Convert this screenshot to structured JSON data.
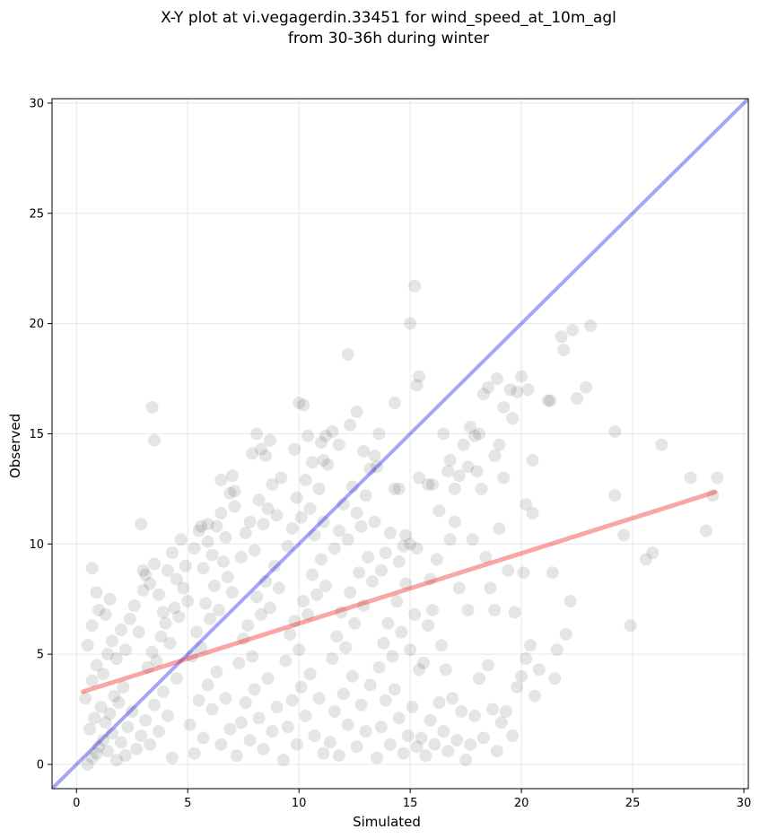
{
  "chart_data": {
    "type": "scatter",
    "title": "X-Y plot at vi.vegagerdin.33451 for wind_speed_at_10m_agl",
    "subtitle": "from 30-36h during winter",
    "xlabel": "Simulated",
    "ylabel": "Observed",
    "xlim": [
      -1.1,
      30.2
    ],
    "ylim": [
      -1.1,
      30.2
    ],
    "xticks": [
      0,
      5,
      10,
      15,
      20,
      25,
      30
    ],
    "yticks": [
      0,
      5,
      10,
      15,
      20,
      25,
      30
    ],
    "grid": true,
    "point_color": "#000000",
    "point_opacity": 0.1,
    "identity_line": {
      "x": [
        -1.1,
        30.2
      ],
      "y": [
        -1.1,
        30.2
      ],
      "color": "#0000ee",
      "opacity": 0.35
    },
    "regression_line": {
      "x": [
        0.3,
        28.7
      ],
      "y": [
        3.3,
        12.35
      ],
      "color": "#ee0000",
      "opacity": 0.35
    },
    "points": [
      [
        0.5,
        0.0
      ],
      [
        0.7,
        0.3
      ],
      [
        0.9,
        0.5
      ],
      [
        1.0,
        0.8
      ],
      [
        1.2,
        1.1
      ],
      [
        1.4,
        0.6
      ],
      [
        1.6,
        1.4
      ],
      [
        1.8,
        0.2
      ],
      [
        2.0,
        1.0
      ],
      [
        2.2,
        0.4
      ],
      [
        0.6,
        1.6
      ],
      [
        0.8,
        2.1
      ],
      [
        1.1,
        2.6
      ],
      [
        1.3,
        1.9
      ],
      [
        1.5,
        2.3
      ],
      [
        1.7,
        3.1
      ],
      [
        1.9,
        2.8
      ],
      [
        2.1,
        3.5
      ],
      [
        2.3,
        1.7
      ],
      [
        2.5,
        2.4
      ],
      [
        0.4,
        3.0
      ],
      [
        0.7,
        3.8
      ],
      [
        0.9,
        4.5
      ],
      [
        1.2,
        4.1
      ],
      [
        1.4,
        5.0
      ],
      [
        1.6,
        5.6
      ],
      [
        1.8,
        4.8
      ],
      [
        2.0,
        6.1
      ],
      [
        2.2,
        5.2
      ],
      [
        2.4,
        6.6
      ],
      [
        0.5,
        5.4
      ],
      [
        0.7,
        6.3
      ],
      [
        1.0,
        7.0
      ],
      [
        1.3,
        6.8
      ],
      [
        1.5,
        7.5
      ],
      [
        0.7,
        8.9
      ],
      [
        0.9,
        7.8
      ],
      [
        2.6,
        7.2
      ],
      [
        2.8,
        6.0
      ],
      [
        3.0,
        7.9
      ],
      [
        2.7,
        0.7
      ],
      [
        2.9,
        1.3
      ],
      [
        3.1,
        2.0
      ],
      [
        3.3,
        0.9
      ],
      [
        3.5,
        2.7
      ],
      [
        3.7,
        1.5
      ],
      [
        3.9,
        3.3
      ],
      [
        4.1,
        2.2
      ],
      [
        4.3,
        0.3
      ],
      [
        4.5,
        3.9
      ],
      [
        3.2,
        4.4
      ],
      [
        3.4,
        5.1
      ],
      [
        3.6,
        4.7
      ],
      [
        3.8,
        5.8
      ],
      [
        4.0,
        6.4
      ],
      [
        4.2,
        5.5
      ],
      [
        4.4,
        7.1
      ],
      [
        4.6,
        6.7
      ],
      [
        4.8,
        8.0
      ],
      [
        5.0,
        7.4
      ],
      [
        3.1,
        8.6
      ],
      [
        3.3,
        8.2
      ],
      [
        3.5,
        9.1
      ],
      [
        3.7,
        7.7
      ],
      [
        3.9,
        6.9
      ],
      [
        4.1,
        8.8
      ],
      [
        4.3,
        9.6
      ],
      [
        4.5,
        8.4
      ],
      [
        4.7,
        10.2
      ],
      [
        4.9,
        9.0
      ],
      [
        3.4,
        16.2
      ],
      [
        3.5,
        14.7
      ],
      [
        2.9,
        10.9
      ],
      [
        3.0,
        8.8
      ],
      [
        5.1,
        1.8
      ],
      [
        5.3,
        0.5
      ],
      [
        5.5,
        2.9
      ],
      [
        5.7,
        1.2
      ],
      [
        5.9,
        3.6
      ],
      [
        6.1,
        2.5
      ],
      [
        6.3,
        4.2
      ],
      [
        6.5,
        0.9
      ],
      [
        6.7,
        3.0
      ],
      [
        6.9,
        1.6
      ],
      [
        5.2,
        4.9
      ],
      [
        5.4,
        6.0
      ],
      [
        5.6,
        5.3
      ],
      [
        5.8,
        7.3
      ],
      [
        6.0,
        6.6
      ],
      [
        6.2,
        8.1
      ],
      [
        6.4,
        7.0
      ],
      [
        6.6,
        9.2
      ],
      [
        6.8,
        8.5
      ],
      [
        7.0,
        7.8
      ],
      [
        5.3,
        9.8
      ],
      [
        5.5,
        10.6
      ],
      [
        5.7,
        8.9
      ],
      [
        5.9,
        10.1
      ],
      [
        6.1,
        9.5
      ],
      [
        6.3,
        10.8
      ],
      [
        6.5,
        11.4
      ],
      [
        6.7,
        10.3
      ],
      [
        6.9,
        12.3
      ],
      [
        7.1,
        11.7
      ],
      [
        5.6,
        10.8
      ],
      [
        5.9,
        10.9
      ],
      [
        6.5,
        12.9
      ],
      [
        7.0,
        13.1
      ],
      [
        7.1,
        12.4
      ],
      [
        7.2,
        0.4
      ],
      [
        7.4,
        1.9
      ],
      [
        7.6,
        2.8
      ],
      [
        7.8,
        1.1
      ],
      [
        8.0,
        3.4
      ],
      [
        8.2,
        2.1
      ],
      [
        8.4,
        0.7
      ],
      [
        8.6,
        3.9
      ],
      [
        8.8,
        1.5
      ],
      [
        9.0,
        2.6
      ],
      [
        7.3,
        4.6
      ],
      [
        7.5,
        5.7
      ],
      [
        7.7,
        6.3
      ],
      [
        7.9,
        4.9
      ],
      [
        8.1,
        7.6
      ],
      [
        8.3,
        6.8
      ],
      [
        8.5,
        8.3
      ],
      [
        8.7,
        7.1
      ],
      [
        8.9,
        9.0
      ],
      [
        9.1,
        8.0
      ],
      [
        7.4,
        9.4
      ],
      [
        7.6,
        10.5
      ],
      [
        7.8,
        11.0
      ],
      [
        8.0,
        9.7
      ],
      [
        8.2,
        12.0
      ],
      [
        8.4,
        10.9
      ],
      [
        8.6,
        11.6
      ],
      [
        8.8,
        12.7
      ],
      [
        9.0,
        11.3
      ],
      [
        9.2,
        13.0
      ],
      [
        7.9,
        14.1
      ],
      [
        8.3,
        14.3
      ],
      [
        8.7,
        14.7
      ],
      [
        8.1,
        15.0
      ],
      [
        8.5,
        14.0
      ],
      [
        9.3,
        0.2
      ],
      [
        9.5,
        1.7
      ],
      [
        9.7,
        2.9
      ],
      [
        9.9,
        0.9
      ],
      [
        10.1,
        3.5
      ],
      [
        10.3,
        2.2
      ],
      [
        10.5,
        4.1
      ],
      [
        10.7,
        1.3
      ],
      [
        10.9,
        3.0
      ],
      [
        11.1,
        0.5
      ],
      [
        9.4,
        4.7
      ],
      [
        9.6,
        5.9
      ],
      [
        9.8,
        6.5
      ],
      [
        10.0,
        5.2
      ],
      [
        10.2,
        7.4
      ],
      [
        10.4,
        6.8
      ],
      [
        10.6,
        8.6
      ],
      [
        10.8,
        7.7
      ],
      [
        11.0,
        9.3
      ],
      [
        11.2,
        8.1
      ],
      [
        9.5,
        9.9
      ],
      [
        9.7,
        10.7
      ],
      [
        9.9,
        12.1
      ],
      [
        10.1,
        11.2
      ],
      [
        10.3,
        12.9
      ],
      [
        10.5,
        11.6
      ],
      [
        10.7,
        10.4
      ],
      [
        10.9,
        12.5
      ],
      [
        11.1,
        11.0
      ],
      [
        11.3,
        13.6
      ],
      [
        9.8,
        14.3
      ],
      [
        10.0,
        16.4
      ],
      [
        10.2,
        16.3
      ],
      [
        10.4,
        14.9
      ],
      [
        10.6,
        13.7
      ],
      [
        11.0,
        14.6
      ],
      [
        11.2,
        14.9
      ],
      [
        11.5,
        15.1
      ],
      [
        11.8,
        14.5
      ],
      [
        11.1,
        13.8
      ],
      [
        11.4,
        1.0
      ],
      [
        11.6,
        2.4
      ],
      [
        11.8,
        0.4
      ],
      [
        12.0,
        3.2
      ],
      [
        12.2,
        1.8
      ],
      [
        12.4,
        4.0
      ],
      [
        12.6,
        0.8
      ],
      [
        12.8,
        2.7
      ],
      [
        13.0,
        1.5
      ],
      [
        13.2,
        3.6
      ],
      [
        11.5,
        4.8
      ],
      [
        11.7,
        5.8
      ],
      [
        11.9,
        6.9
      ],
      [
        12.1,
        5.3
      ],
      [
        12.3,
        7.8
      ],
      [
        12.5,
        6.4
      ],
      [
        12.7,
        8.7
      ],
      [
        12.9,
        7.2
      ],
      [
        13.1,
        9.4
      ],
      [
        13.3,
        8.3
      ],
      [
        11.6,
        9.8
      ],
      [
        11.8,
        10.6
      ],
      [
        12.0,
        11.8
      ],
      [
        12.2,
        10.2
      ],
      [
        12.4,
        12.6
      ],
      [
        12.6,
        11.4
      ],
      [
        12.8,
        10.8
      ],
      [
        13.0,
        12.2
      ],
      [
        13.2,
        13.4
      ],
      [
        13.4,
        11.0
      ],
      [
        12.2,
        18.6
      ],
      [
        12.6,
        16.0
      ],
      [
        12.3,
        15.4
      ],
      [
        12.9,
        14.2
      ],
      [
        13.4,
        14.0
      ],
      [
        13.6,
        15.0
      ],
      [
        13.5,
        13.5
      ],
      [
        13.5,
        0.3
      ],
      [
        13.7,
        1.7
      ],
      [
        13.9,
        2.9
      ],
      [
        14.1,
        0.9
      ],
      [
        14.3,
        3.4
      ],
      [
        14.5,
        2.1
      ],
      [
        14.7,
        0.5
      ],
      [
        14.9,
        1.3
      ],
      [
        15.1,
        2.6
      ],
      [
        15.3,
        0.8
      ],
      [
        13.6,
        4.4
      ],
      [
        13.8,
        5.5
      ],
      [
        14.0,
        6.4
      ],
      [
        14.2,
        4.9
      ],
      [
        14.4,
        7.4
      ],
      [
        14.6,
        6.0
      ],
      [
        14.8,
        8.2
      ],
      [
        15.0,
        5.2
      ],
      [
        15.2,
        6.8
      ],
      [
        15.4,
        4.3
      ],
      [
        13.7,
        8.8
      ],
      [
        13.9,
        9.6
      ],
      [
        14.1,
        10.5
      ],
      [
        14.3,
        12.5
      ],
      [
        14.5,
        9.2
      ],
      [
        14.7,
        9.9
      ],
      [
        15.0,
        10.0
      ],
      [
        15.3,
        9.8
      ],
      [
        15.4,
        13.0
      ],
      [
        14.5,
        12.5
      ],
      [
        14.3,
        16.4
      ],
      [
        15.0,
        20.0
      ],
      [
        15.2,
        21.7
      ],
      [
        15.3,
        17.2
      ],
      [
        15.4,
        17.6
      ],
      [
        14.8,
        10.4
      ],
      [
        15.5,
        1.2
      ],
      [
        15.7,
        0.4
      ],
      [
        15.9,
        2.0
      ],
      [
        16.1,
        0.9
      ],
      [
        16.3,
        2.8
      ],
      [
        16.5,
        1.5
      ],
      [
        16.7,
        0.6
      ],
      [
        16.9,
        3.0
      ],
      [
        17.1,
        1.1
      ],
      [
        17.3,
        2.4
      ],
      [
        15.6,
        4.6
      ],
      [
        15.8,
        6.3
      ],
      [
        16.0,
        7.0
      ],
      [
        16.2,
        9.3
      ],
      [
        16.4,
        5.4
      ],
      [
        16.6,
        4.3
      ],
      [
        16.8,
        10.2
      ],
      [
        17.0,
        11.0
      ],
      [
        17.2,
        8.0
      ],
      [
        15.9,
        8.4
      ],
      [
        15.8,
        12.7
      ],
      [
        16.0,
        12.7
      ],
      [
        16.5,
        15.0
      ],
      [
        16.7,
        13.3
      ],
      [
        16.8,
        13.8
      ],
      [
        17.0,
        12.5
      ],
      [
        17.2,
        13.1
      ],
      [
        17.4,
        14.5
      ],
      [
        17.6,
        13.5
      ],
      [
        16.3,
        11.5
      ],
      [
        17.5,
        0.2
      ],
      [
        17.7,
        0.9
      ],
      [
        17.9,
        2.2
      ],
      [
        18.1,
        3.9
      ],
      [
        18.3,
        1.2
      ],
      [
        18.5,
        4.5
      ],
      [
        18.7,
        2.5
      ],
      [
        18.9,
        0.6
      ],
      [
        19.1,
        1.9
      ],
      [
        19.3,
        2.4
      ],
      [
        17.6,
        7.0
      ],
      [
        17.8,
        10.2
      ],
      [
        18.0,
        13.3
      ],
      [
        18.2,
        12.5
      ],
      [
        18.4,
        9.4
      ],
      [
        18.6,
        8.0
      ],
      [
        18.8,
        7.0
      ],
      [
        19.0,
        10.7
      ],
      [
        19.2,
        13.0
      ],
      [
        19.4,
        8.8
      ],
      [
        17.7,
        15.3
      ],
      [
        17.9,
        14.9
      ],
      [
        18.1,
        15.0
      ],
      [
        18.3,
        16.8
      ],
      [
        18.5,
        17.1
      ],
      [
        18.8,
        14.0
      ],
      [
        19.0,
        14.5
      ],
      [
        19.2,
        16.2
      ],
      [
        19.5,
        17.0
      ],
      [
        18.9,
        17.5
      ],
      [
        19.6,
        1.3
      ],
      [
        19.8,
        3.5
      ],
      [
        20.0,
        4.0
      ],
      [
        20.2,
        4.8
      ],
      [
        20.4,
        5.4
      ],
      [
        20.6,
        3.1
      ],
      [
        20.8,
        4.3
      ],
      [
        19.7,
        6.9
      ],
      [
        20.1,
        8.7
      ],
      [
        20.5,
        11.4
      ],
      [
        19.6,
        15.7
      ],
      [
        19.8,
        16.9
      ],
      [
        20.0,
        17.6
      ],
      [
        20.3,
        17.0
      ],
      [
        20.5,
        13.8
      ],
      [
        20.2,
        11.8
      ],
      [
        21.2,
        16.5
      ],
      [
        21.3,
        16.5
      ],
      [
        21.4,
        8.7
      ],
      [
        21.5,
        3.9
      ],
      [
        21.6,
        5.2
      ],
      [
        21.8,
        19.4
      ],
      [
        21.9,
        18.8
      ],
      [
        22.0,
        5.9
      ],
      [
        22.2,
        7.4
      ],
      [
        22.3,
        19.7
      ],
      [
        22.5,
        16.6
      ],
      [
        22.9,
        17.1
      ],
      [
        23.1,
        19.9
      ],
      [
        24.2,
        15.1
      ],
      [
        24.2,
        12.2
      ],
      [
        24.6,
        10.4
      ],
      [
        24.9,
        6.3
      ],
      [
        25.6,
        9.3
      ],
      [
        25.9,
        9.6
      ],
      [
        26.3,
        14.5
      ],
      [
        27.6,
        13.0
      ],
      [
        28.3,
        10.6
      ],
      [
        28.6,
        12.2
      ],
      [
        28.8,
        13.0
      ]
    ]
  }
}
